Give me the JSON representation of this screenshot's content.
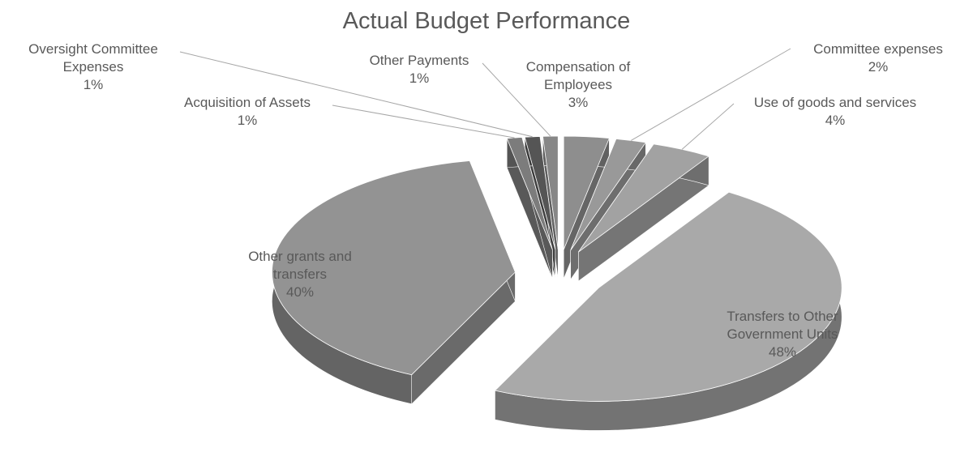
{
  "chart_data": {
    "type": "pie3d",
    "title": "Actual Budget Performance",
    "categories": [
      "Compensation of Employees",
      "Committee expenses",
      "Use of goods and services",
      "Transfers to Other Government Units",
      "Other grants and transfers",
      "Acquisition of Assets",
      "Oversight Committee Expenses",
      "Other Payments"
    ],
    "values": [
      3,
      2,
      4,
      48,
      40,
      1,
      1,
      1
    ],
    "value_labels": [
      "3%",
      "2%",
      "4%",
      "48%",
      "40%",
      "1%",
      "1%",
      "1%"
    ],
    "colors": [
      "#8e8e8e",
      "#999999",
      "#a2a2a2",
      "#a9a9a9",
      "#939393",
      "#7c7c7c",
      "#555555",
      "#878787"
    ]
  }
}
